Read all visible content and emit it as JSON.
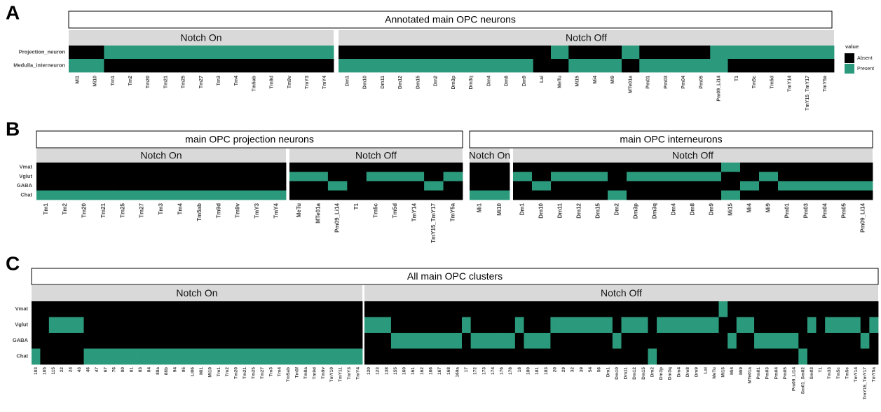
{
  "chart_data": [
    {
      "type": "heatmap",
      "panel": "A",
      "title": "Annotated main OPC neurons",
      "rows": [
        "Projection_neuron",
        "Medulla_interneuron"
      ],
      "colors": [
        "#000000",
        "#2b9a7c"
      ],
      "legend": {
        "title": "value",
        "labels": [
          "Absent",
          "Present"
        ]
      },
      "groups": [
        {
          "name": "Notch On",
          "categories": [
            "Mi1",
            "Mi10",
            "Tm1",
            "Tm2",
            "Tm20",
            "Tm21",
            "Tm25",
            "Tm27",
            "Tm3",
            "Tm4",
            "Tm5ab",
            "Tm9d",
            "Tm9v",
            "TmY3",
            "TmY4"
          ],
          "values": [
            [
              0,
              0,
              1,
              1,
              1,
              1,
              1,
              1,
              1,
              1,
              1,
              1,
              1,
              1,
              1
            ],
            [
              1,
              1,
              0,
              0,
              0,
              0,
              0,
              0,
              0,
              0,
              0,
              0,
              0,
              0,
              0
            ]
          ]
        },
        {
          "name": "Notch Off",
          "categories": [
            "Dm1",
            "Dm10",
            "Dm11",
            "Dm12",
            "Dm15",
            "Dm2",
            "Dm3p",
            "Dm3q",
            "Dm4",
            "Dm8",
            "Dm9",
            "Lai",
            "MeTu",
            "Mi15",
            "Mi4",
            "Mi9",
            "MTe01a",
            "Pm01",
            "Pm03",
            "Pm04",
            "Pm05",
            "Pm09_Li14",
            "T1",
            "Tm5c",
            "Tm5d",
            "TmY14",
            "TmY15_TmY17",
            "TmY5a"
          ],
          "values": [
            [
              0,
              0,
              0,
              0,
              0,
              0,
              0,
              0,
              0,
              0,
              0,
              0,
              1,
              0,
              0,
              0,
              1,
              0,
              0,
              0,
              0,
              1,
              1,
              1,
              1,
              1,
              1,
              1
            ],
            [
              1,
              1,
              1,
              1,
              1,
              1,
              1,
              1,
              1,
              1,
              1,
              0,
              0,
              1,
              1,
              1,
              0,
              1,
              1,
              1,
              1,
              1,
              0,
              0,
              0,
              0,
              0,
              0
            ]
          ]
        }
      ]
    },
    {
      "type": "heatmap",
      "panel": "B",
      "title": "main OPC projection neurons",
      "rows": [
        "Vmat",
        "Vglut",
        "GABA",
        "Chat"
      ],
      "colors": [
        "#000000",
        "#2b9a7c"
      ],
      "groups": [
        {
          "name": "Notch On",
          "categories": [
            "Tm1",
            "Tm2",
            "Tm20",
            "Tm21",
            "Tm25",
            "Tm27",
            "Tm3",
            "Tm4",
            "Tm5ab",
            "Tm9d",
            "Tm9v",
            "TmY3",
            "TmY4"
          ],
          "values": [
            [
              0,
              0,
              0,
              0,
              0,
              0,
              0,
              0,
              0,
              0,
              0,
              0,
              0
            ],
            [
              0,
              0,
              0,
              0,
              0,
              0,
              0,
              0,
              0,
              0,
              0,
              0,
              0
            ],
            [
              0,
              0,
              0,
              0,
              0,
              0,
              0,
              0,
              0,
              0,
              0,
              0,
              0
            ],
            [
              1,
              1,
              1,
              1,
              1,
              1,
              1,
              1,
              1,
              1,
              1,
              1,
              1
            ]
          ]
        },
        {
          "name": "Notch Off",
          "categories": [
            "MeTu",
            "MTe01a",
            "Pm09_Li14",
            "T1",
            "Tm5c",
            "Tm5d",
            "TmY14",
            "TmY15_TmY17",
            "TmY5a"
          ],
          "values": [
            [
              0,
              0,
              0,
              0,
              0,
              0,
              0,
              0,
              0
            ],
            [
              1,
              1,
              0,
              0,
              1,
              1,
              1,
              0,
              1
            ],
            [
              0,
              0,
              1,
              0,
              0,
              0,
              0,
              1,
              0
            ],
            [
              0,
              0,
              0,
              0,
              0,
              0,
              0,
              0,
              0
            ]
          ]
        }
      ]
    },
    {
      "type": "heatmap",
      "title": "main OPC interneurons",
      "colors": [
        "#000000",
        "#2b9a7c"
      ],
      "groups": [
        {
          "name": "Notch On",
          "categories": [
            "Mi1",
            "Mi10"
          ],
          "values": [
            [
              0,
              0
            ],
            [
              0,
              0
            ],
            [
              0,
              0
            ],
            [
              1,
              1
            ]
          ]
        },
        {
          "name": "Notch Off",
          "categories": [
            "Dm1",
            "Dm10",
            "Dm11",
            "Dm12",
            "Dm15",
            "Dm2",
            "Dm3p",
            "Dm3q",
            "Dm4",
            "Dm8",
            "Dm9",
            "Mi15",
            "Mi4",
            "Mi9",
            "Pm01",
            "Pm03",
            "Pm04",
            "Pm05",
            "Pm09_Li14"
          ],
          "values": [
            [
              0,
              0,
              0,
              0,
              0,
              0,
              0,
              0,
              0,
              0,
              0,
              1,
              0,
              0,
              0,
              0,
              0,
              0,
              0
            ],
            [
              1,
              0,
              1,
              1,
              1,
              0,
              1,
              1,
              1,
              1,
              1,
              0,
              0,
              1,
              0,
              0,
              0,
              0,
              0
            ],
            [
              0,
              1,
              0,
              0,
              0,
              0,
              0,
              0,
              0,
              0,
              0,
              0,
              1,
              0,
              1,
              1,
              1,
              1,
              1
            ],
            [
              0,
              0,
              0,
              0,
              0,
              1,
              0,
              0,
              0,
              0,
              0,
              1,
              0,
              0,
              0,
              0,
              0,
              0,
              0
            ]
          ]
        }
      ]
    },
    {
      "type": "heatmap",
      "panel": "C",
      "title": "All main OPC clusters",
      "rows": [
        "Vmat",
        "Vglut",
        "GABA",
        "Chat"
      ],
      "colors": [
        "#000000",
        "#2b9a7c"
      ],
      "groups": [
        {
          "name": "Notch On",
          "categories": [
            "103",
            "105",
            "115",
            "22",
            "24",
            "43",
            "46",
            "47",
            "67",
            "76",
            "80",
            "81",
            "83",
            "84",
            "88a",
            "88b",
            "94",
            "95",
            "Li06",
            "Mi1",
            "Mi10",
            "Tm1",
            "Tm2",
            "Tm20",
            "Tm21",
            "Tm25",
            "Tm27",
            "Tm3",
            "Tm4",
            "Tm5ab",
            "Tm5f",
            "Tm8a",
            "Tm9d",
            "Tm9v",
            "TmY10",
            "TmY11",
            "TmY3",
            "TmY4"
          ],
          "values": [
            [
              0,
              0,
              0,
              0,
              0,
              0,
              0,
              0,
              0,
              0,
              0,
              0,
              0,
              0,
              0,
              0,
              0,
              0,
              0,
              0,
              0,
              0,
              0,
              0,
              0,
              0,
              0,
              0,
              0,
              0,
              0,
              0,
              0,
              0,
              0,
              0,
              0,
              0
            ],
            [
              0,
              0,
              1,
              1,
              1,
              1,
              0,
              0,
              0,
              0,
              0,
              0,
              0,
              0,
              0,
              0,
              0,
              0,
              0,
              0,
              0,
              0,
              0,
              0,
              0,
              0,
              0,
              0,
              0,
              0,
              0,
              0,
              0,
              0,
              0,
              0,
              0,
              0
            ],
            [
              0,
              0,
              0,
              0,
              0,
              0,
              0,
              0,
              0,
              0,
              0,
              0,
              0,
              0,
              0,
              0,
              0,
              0,
              0,
              0,
              0,
              0,
              0,
              0,
              0,
              0,
              0,
              0,
              0,
              0,
              0,
              0,
              0,
              0,
              0,
              0,
              0,
              0
            ],
            [
              1,
              0,
              0,
              0,
              0,
              0,
              1,
              1,
              1,
              1,
              1,
              1,
              1,
              1,
              1,
              1,
              1,
              1,
              1,
              1,
              1,
              1,
              1,
              1,
              1,
              1,
              1,
              1,
              1,
              1,
              1,
              1,
              1,
              1,
              1,
              1,
              1,
              1
            ]
          ]
        },
        {
          "name": "Notch Off",
          "categories": [
            "120",
            "123",
            "138",
            "155",
            "160",
            "161",
            "162",
            "166",
            "167",
            "168",
            "169a",
            "17",
            "172",
            "173",
            "174",
            "176",
            "178",
            "18",
            "180",
            "181",
            "183",
            "20",
            "29",
            "32",
            "39",
            "54",
            "56",
            "Dm1",
            "Dm10",
            "Dm11",
            "Dm12",
            "Dm15",
            "Dm2",
            "Dm3p",
            "Dm3q",
            "Dm4",
            "Dm8",
            "Dm9",
            "Lai",
            "MeTu",
            "Mi15",
            "Mi4",
            "Mi9",
            "MTe01a",
            "Pm01",
            "Pm03",
            "Pm04",
            "Pm05",
            "Pm09_Li14",
            "Sm01_Sm02",
            "Sm03",
            "T1",
            "Tm33",
            "Tm5c",
            "Tm5e",
            "TmY14",
            "TmY15_TmY17",
            "TmY5a"
          ],
          "values": [
            [
              0,
              0,
              0,
              0,
              0,
              0,
              0,
              0,
              0,
              0,
              0,
              0,
              0,
              0,
              0,
              0,
              0,
              0,
              0,
              0,
              0,
              0,
              0,
              0,
              0,
              0,
              0,
              0,
              0,
              0,
              0,
              0,
              0,
              0,
              0,
              0,
              0,
              0,
              0,
              0,
              1,
              0,
              0,
              0,
              0,
              0,
              0,
              0,
              0,
              0,
              0,
              0,
              0,
              0,
              0,
              0,
              0,
              0
            ],
            [
              1,
              1,
              1,
              0,
              0,
              0,
              0,
              0,
              0,
              0,
              0,
              1,
              0,
              0,
              0,
              0,
              0,
              1,
              0,
              0,
              0,
              1,
              1,
              1,
              1,
              1,
              1,
              1,
              0,
              1,
              1,
              1,
              0,
              1,
              1,
              1,
              1,
              1,
              1,
              1,
              0,
              0,
              1,
              1,
              0,
              0,
              0,
              0,
              0,
              0,
              1,
              0,
              1,
              1,
              1,
              1,
              0,
              1
            ],
            [
              0,
              0,
              0,
              1,
              1,
              1,
              1,
              1,
              1,
              1,
              1,
              0,
              1,
              1,
              1,
              1,
              1,
              0,
              1,
              1,
              1,
              0,
              0,
              0,
              0,
              0,
              0,
              0,
              1,
              0,
              0,
              0,
              0,
              0,
              0,
              0,
              0,
              0,
              0,
              0,
              0,
              1,
              0,
              0,
              1,
              1,
              1,
              1,
              1,
              0,
              0,
              0,
              0,
              0,
              0,
              0,
              1,
              0
            ],
            [
              0,
              0,
              0,
              0,
              0,
              0,
              0,
              0,
              0,
              0,
              0,
              0,
              0,
              0,
              0,
              0,
              0,
              0,
              0,
              0,
              0,
              0,
              0,
              0,
              0,
              0,
              0,
              0,
              0,
              0,
              0,
              0,
              1,
              0,
              0,
              0,
              0,
              0,
              0,
              0,
              0,
              0,
              0,
              0,
              0,
              0,
              0,
              0,
              0,
              1,
              0,
              0,
              0,
              0,
              0,
              0,
              0,
              0
            ]
          ]
        }
      ]
    }
  ]
}
